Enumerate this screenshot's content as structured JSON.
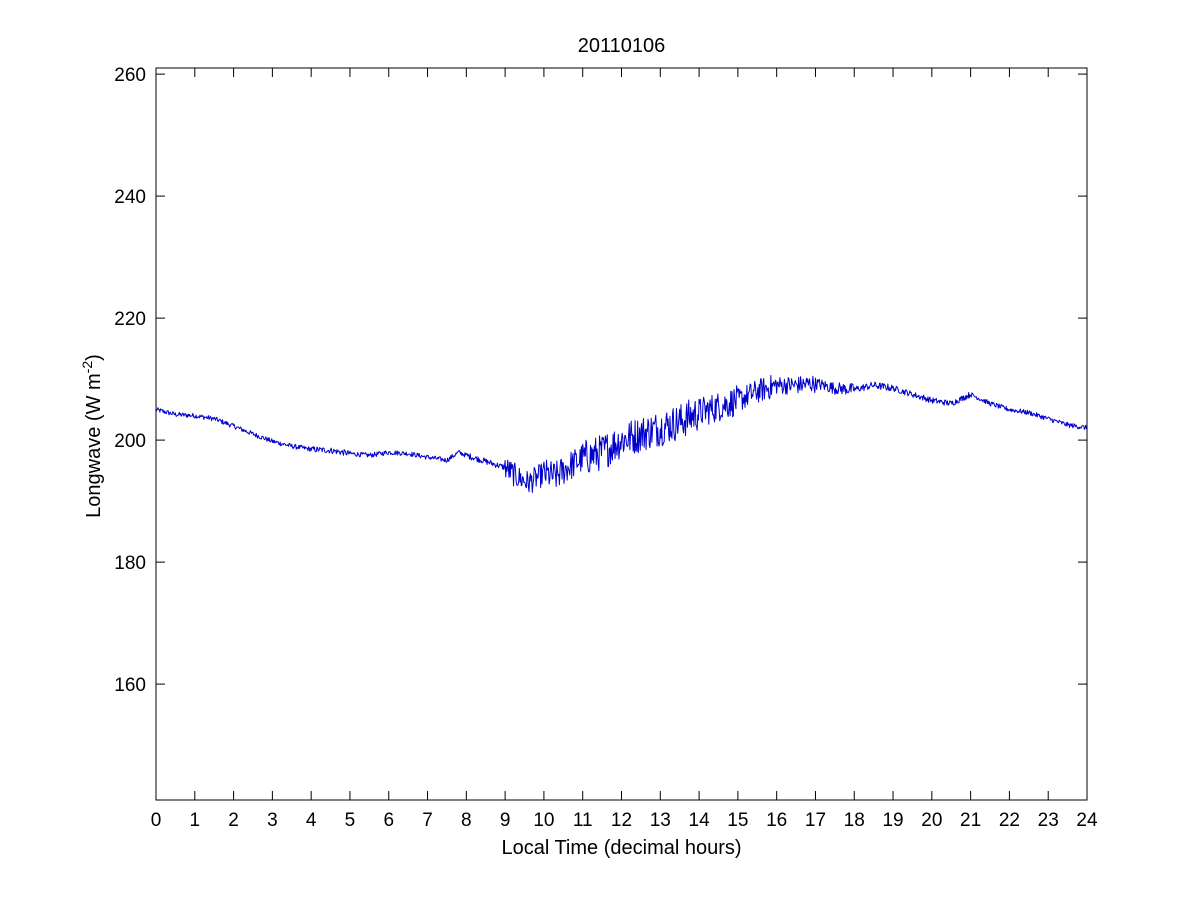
{
  "chart_data": {
    "type": "line",
    "title": "20110106",
    "xlabel": "Local Time (decimal hours)",
    "ylabel": {
      "prefix": "Longwave (W m",
      "superscript": "-2",
      "suffix": ")"
    },
    "xlim": [
      0,
      24
    ],
    "ylim": [
      141,
      261
    ],
    "xticks": [
      0,
      1,
      2,
      3,
      4,
      5,
      6,
      7,
      8,
      9,
      10,
      11,
      12,
      13,
      14,
      15,
      16,
      17,
      18,
      19,
      20,
      21,
      22,
      23,
      24
    ],
    "xtick_labels": [
      "0",
      "1",
      "2",
      "3",
      "4",
      "5",
      "6",
      "7",
      "8",
      "9",
      "10",
      "11",
      "12",
      "13",
      "14",
      "15",
      "16",
      "17",
      "18",
      "19",
      "20",
      "21",
      "22",
      "23",
      "24"
    ],
    "yticks": [
      160,
      180,
      200,
      220,
      240,
      260
    ],
    "ytick_labels": [
      "160",
      "180",
      "200",
      "220",
      "240",
      "260"
    ],
    "grid": false,
    "legend": "none",
    "series": [
      {
        "color": "#0000cc",
        "noise_amplitude": [
          0.4,
          0.4,
          0.4,
          0.4,
          0.5,
          0.4,
          0.4,
          0.4,
          0.5,
          2.0,
          2.5,
          3.0,
          3.0,
          3.0,
          2.5,
          2.0,
          1.5,
          1.0,
          0.6,
          0.5,
          0.5,
          0.4,
          0.4,
          0.4,
          0.4
        ],
        "x": [
          0,
          0.5,
          1,
          1.5,
          2,
          2.5,
          3,
          3.5,
          4,
          4.5,
          5,
          5.5,
          6,
          6.5,
          7,
          7.5,
          7.8,
          8,
          8.5,
          9,
          9.3,
          9.6,
          10,
          10.3,
          10.6,
          11,
          11.5,
          12,
          12.5,
          13,
          13.5,
          14,
          14.5,
          15,
          15.5,
          16,
          16.5,
          17,
          17.5,
          18,
          18.5,
          19,
          19.5,
          20,
          20.5,
          21,
          21.5,
          22,
          22.5,
          23,
          23.5,
          24
        ],
        "y": [
          205,
          204.2,
          204,
          203.5,
          202.3,
          201,
          199.8,
          199,
          198.5,
          198.3,
          197.8,
          197.5,
          198,
          197.8,
          197.2,
          196.7,
          198,
          197.5,
          196.5,
          195.5,
          194,
          193,
          194.5,
          194,
          195.5,
          197,
          198,
          200,
          201,
          202,
          203,
          204.5,
          205.5,
          206.5,
          208,
          209,
          209,
          209.3,
          208.5,
          208.3,
          209,
          208.5,
          207.5,
          206.5,
          206,
          207.5,
          206,
          205,
          204.5,
          203.5,
          202.5,
          202
        ]
      }
    ]
  }
}
